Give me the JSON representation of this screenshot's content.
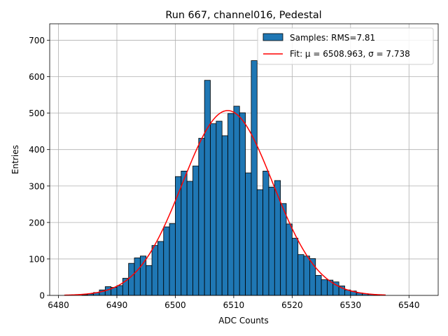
{
  "chart_data": {
    "type": "bar",
    "title": "Run 667, channel016, Pedestal",
    "xlabel": "ADC Counts",
    "ylabel": "Entries",
    "xlim": [
      6478.5,
      6545
    ],
    "ylim": [
      0,
      745
    ],
    "xticks": [
      6480,
      6490,
      6500,
      6510,
      6520,
      6530,
      6540
    ],
    "yticks": [
      0,
      100,
      200,
      300,
      400,
      500,
      600,
      700
    ],
    "grid": true,
    "legend_position": "top-right",
    "colors": {
      "bar_fill": "#1f77b4",
      "bar_edge": "#000000",
      "fit_line": "#ff0000",
      "grid": "#b0b0b0"
    },
    "histogram": {
      "name": "Samples: RMS=7.81",
      "bin_width": 1,
      "bin_starts": [
        6484,
        6485,
        6486,
        6487,
        6488,
        6489,
        6490,
        6491,
        6492,
        6493,
        6494,
        6495,
        6496,
        6497,
        6498,
        6499,
        6500,
        6501,
        6502,
        6503,
        6504,
        6505,
        6506,
        6507,
        6508,
        6509,
        6510,
        6511,
        6512,
        6513,
        6514,
        6515,
        6516,
        6517,
        6518,
        6519,
        6520,
        6521,
        6522,
        6523,
        6524,
        6525,
        6526,
        6527,
        6528,
        6529,
        6530,
        6531,
        6532,
        6533,
        6534
      ],
      "counts": [
        2,
        4,
        8,
        15,
        24,
        22,
        27,
        47,
        88,
        103,
        108,
        82,
        137,
        148,
        188,
        197,
        326,
        341,
        313,
        355,
        431,
        590,
        471,
        478,
        438,
        499,
        519,
        501,
        336,
        644,
        290,
        341,
        297,
        315,
        252,
        196,
        157,
        112,
        108,
        101,
        55,
        43,
        42,
        37,
        26,
        15,
        12,
        7,
        5,
        3,
        1
      ]
    },
    "fit": {
      "name": "Fit: μ = 6508.963, σ = 7.738",
      "mu": 6508.963,
      "sigma": 7.738,
      "amplitude": 507,
      "x_range": [
        6481,
        6536
      ]
    }
  }
}
